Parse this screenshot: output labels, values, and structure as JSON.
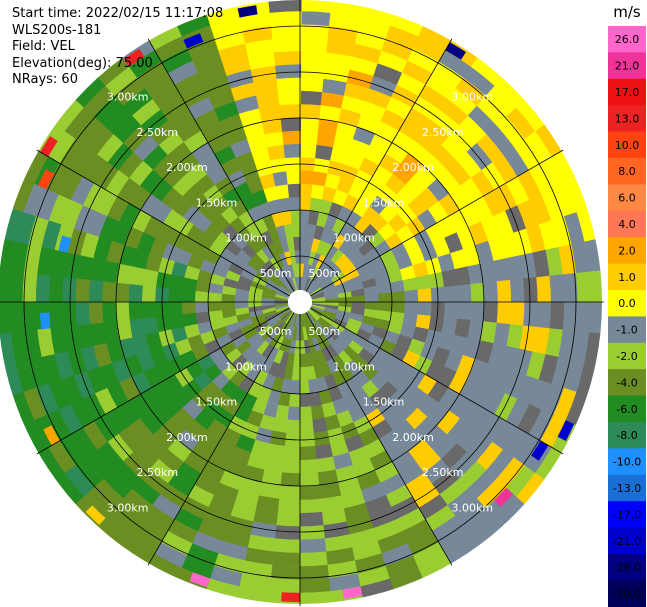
{
  "info": {
    "start_time": "Start time: 2022/02/15 11:17:08",
    "site": "WLS200s-181",
    "field": "Field: VEL",
    "elevation": "Elevation(deg): 75.00",
    "nrays": "NRays: 60"
  },
  "chart_data": {
    "type": "heatmap",
    "projection": "polar (PPI)",
    "field": "VEL",
    "units": "m/s",
    "range_ring_labels": [
      "500m",
      "1.00km",
      "1.50km",
      "2.00km",
      "2.50km",
      "3.00km"
    ],
    "colorbar": {
      "unit_label": "m/s",
      "ticks": [
        "26.0",
        "21.0",
        "17.0",
        "13.0",
        "10.0",
        "8.0",
        "6.0",
        "4.0",
        "2.0",
        "1.0",
        "0.0",
        "-1.0",
        "-2.0",
        "-4.0",
        "-6.0",
        "-8.0",
        "-10.0",
        "-13.0",
        "-17.0",
        "-21.0",
        "-26.0",
        "-30.0"
      ],
      "colors": [
        "#ff66cc",
        "#ee3399",
        "#ee1111",
        "#ee2222",
        "#ff4411",
        "#ff6622",
        "#ff8844",
        "#ff7755",
        "#ffa500",
        "#ffcc00",
        "#ffff00",
        "#778899",
        "#9acd32",
        "#6b8e23",
        "#228b22",
        "#2e8b57",
        "#1e90ff",
        "#1a6fd6",
        "#0000ff",
        "#0000cd",
        "#000080",
        "#00005a"
      ]
    },
    "rays": 60,
    "sector_fields": [
      {
        "from_deg": -20,
        "to_deg": 80,
        "dominant": "2.0 to 4.0",
        "color": "#ffff00"
      },
      {
        "from_deg": 80,
        "to_deg": 150,
        "dominant": "-1.0 to 0.0",
        "color": "#778899"
      },
      {
        "from_deg": 150,
        "to_deg": 200,
        "dominant": "-2.0 to -1.0",
        "color": "#9acd32"
      },
      {
        "from_deg": 200,
        "to_deg": 230,
        "dominant": "-4.0 to -2.0",
        "color": "#6b8e23"
      },
      {
        "from_deg": 230,
        "to_deg": 290,
        "dominant": "-6.0 to -4.0",
        "color": "#228b22"
      },
      {
        "from_deg": 290,
        "to_deg": 340,
        "dominant": "-4.0 to -2.0",
        "color": "#6b8e23"
      }
    ],
    "grid": true
  }
}
